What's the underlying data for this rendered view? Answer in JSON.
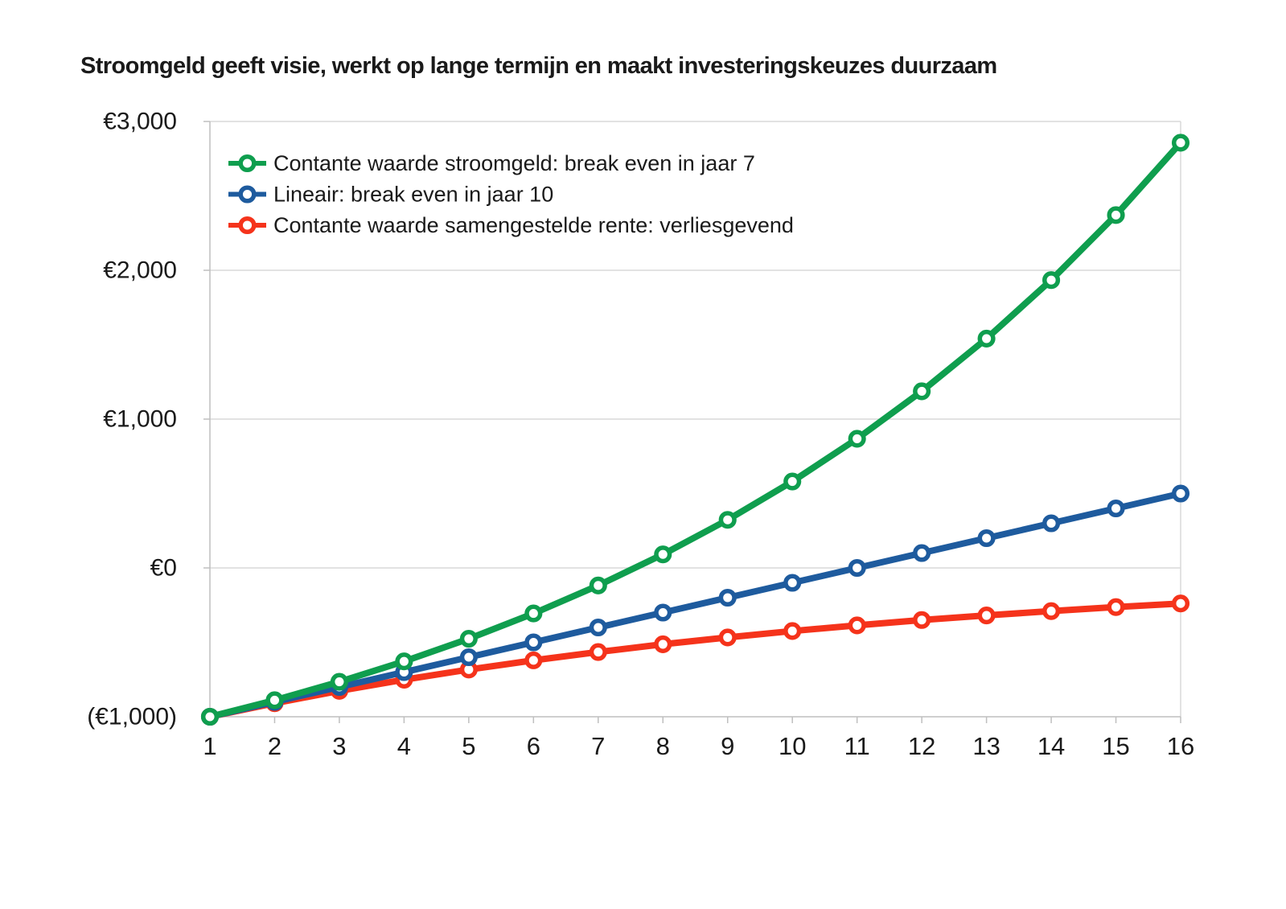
{
  "title": "Stroomgeld geeft visie, werkt op lange termijn en maakt investeringskeuzes duurzaam",
  "colors": {
    "green": "#0f9e4e",
    "blue": "#1e5b9e",
    "red": "#f5331b",
    "gridline": "#d9d9d9",
    "axis": "#bfbfbf",
    "text": "#1a1a1a",
    "marker_fill": "#ffffff"
  },
  "chart_data": {
    "type": "line",
    "x": [
      1,
      2,
      3,
      4,
      5,
      6,
      7,
      8,
      9,
      10,
      11,
      12,
      13,
      14,
      15,
      16
    ],
    "x_tick_labels": [
      "1",
      "2",
      "3",
      "4",
      "5",
      "6",
      "7",
      "8",
      "9",
      "10",
      "11",
      "12",
      "13",
      "14",
      "15",
      "16"
    ],
    "series": [
      {
        "key": "stroomgeld",
        "name": "Contante waarde stroomgeld: break even in jaar 7",
        "color_key": "green",
        "values": [
          -1000,
          -889,
          -765,
          -628,
          -476,
          -306,
          -118,
          91,
          323,
          581,
          868,
          1187,
          1541,
          1934,
          2371,
          2857
        ]
      },
      {
        "key": "lineair",
        "name": "Lineair: break even in jaar 10",
        "color_key": "blue",
        "values": [
          -1000,
          -900,
          -800,
          -700,
          -600,
          -500,
          -400,
          -300,
          -200,
          -100,
          0,
          100,
          200,
          300,
          400,
          500
        ]
      },
      {
        "key": "samengestelde-rente",
        "name": "Contante waarde samengestelde rente: verliesgevend",
        "color_key": "red",
        "values": [
          -1000,
          -909,
          -826,
          -751,
          -683,
          -621,
          -565,
          -513,
          -467,
          -424,
          -386,
          -350,
          -319,
          -290,
          -263,
          -239
        ]
      }
    ],
    "y_ticks": [
      {
        "value": 3000,
        "label": "€3,000"
      },
      {
        "value": 2000,
        "label": "€2,000"
      },
      {
        "value": 1000,
        "label": "€1,000"
      },
      {
        "value": 0,
        "label": "€0"
      },
      {
        "value": -1000,
        "label": "(€1,000)"
      }
    ],
    "ylim": [
      -1000,
      3000
    ],
    "xlabel": "",
    "ylabel": "",
    "grid": "horizontal",
    "legend_position": "top-left-inside"
  }
}
